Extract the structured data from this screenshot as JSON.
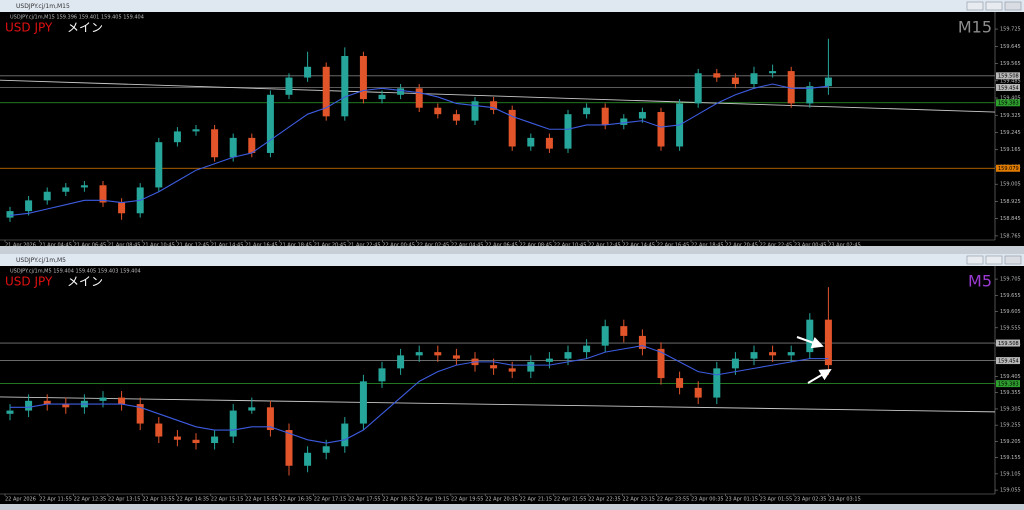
{
  "windows": [
    {
      "title": "USDJPY.cj/1m,M15",
      "info": "USDJPY.cj/1m,M15  159.396 159.401 159.405 159.404",
      "symbol": "USD JPY",
      "label": "メイン",
      "timeframe": "M15",
      "ylim": [
        158.746,
        159.795
      ],
      "yticks": [
        159.725,
        159.645,
        159.565,
        159.485,
        159.405,
        159.325,
        159.245,
        159.165,
        159.085,
        159.005,
        158.925,
        158.845,
        158.765
      ],
      "levels": [
        {
          "value": 159.508,
          "color": "#7a7a7a"
        },
        {
          "value": 159.454,
          "color": "#7a7a7a"
        },
        {
          "value": 159.383,
          "color": "#2e9e2e"
        },
        {
          "value": 159.079,
          "color": "#e07b00"
        }
      ],
      "trendline": [
        159.488,
        159.34
      ],
      "candles": [
        [
          158.85,
          158.9,
          158.83,
          158.88
        ],
        [
          158.88,
          158.95,
          158.86,
          158.93
        ],
        [
          158.93,
          158.99,
          158.91,
          158.97
        ],
        [
          158.97,
          159.01,
          158.95,
          158.99
        ],
        [
          158.99,
          159.02,
          158.97,
          159.0
        ],
        [
          159.0,
          159.02,
          158.9,
          158.92
        ],
        [
          158.92,
          158.94,
          158.84,
          158.87
        ],
        [
          158.87,
          159.01,
          158.85,
          158.99
        ],
        [
          158.99,
          159.22,
          158.97,
          159.2
        ],
        [
          159.2,
          159.27,
          159.18,
          159.25
        ],
        [
          159.25,
          159.28,
          159.23,
          159.26
        ],
        [
          159.26,
          159.28,
          159.11,
          159.13
        ],
        [
          159.13,
          159.24,
          159.11,
          159.22
        ],
        [
          159.22,
          159.24,
          159.13,
          159.15
        ],
        [
          159.15,
          159.44,
          159.13,
          159.42
        ],
        [
          159.42,
          159.52,
          159.4,
          159.5
        ],
        [
          159.5,
          159.62,
          159.48,
          159.55
        ],
        [
          159.55,
          159.57,
          159.3,
          159.32
        ],
        [
          159.32,
          159.64,
          159.3,
          159.6
        ],
        [
          159.6,
          159.62,
          159.38,
          159.4
        ],
        [
          159.4,
          159.44,
          159.38,
          159.42
        ],
        [
          159.42,
          159.47,
          159.4,
          159.45
        ],
        [
          159.45,
          159.47,
          159.34,
          159.36
        ],
        [
          159.36,
          159.38,
          159.31,
          159.33
        ],
        [
          159.33,
          159.35,
          159.28,
          159.3
        ],
        [
          159.3,
          159.41,
          159.28,
          159.39
        ],
        [
          159.39,
          159.41,
          159.33,
          159.35
        ],
        [
          159.35,
          159.37,
          159.16,
          159.18
        ],
        [
          159.18,
          159.24,
          159.16,
          159.22
        ],
        [
          159.22,
          159.24,
          159.15,
          159.17
        ],
        [
          159.17,
          159.35,
          159.15,
          159.33
        ],
        [
          159.33,
          159.38,
          159.31,
          159.36
        ],
        [
          159.36,
          159.38,
          159.26,
          159.28
        ],
        [
          159.28,
          159.33,
          159.26,
          159.31
        ],
        [
          159.31,
          159.36,
          159.29,
          159.34
        ],
        [
          159.34,
          159.36,
          159.16,
          159.18
        ],
        [
          159.18,
          159.4,
          159.16,
          159.38
        ],
        [
          159.38,
          159.54,
          159.36,
          159.52
        ],
        [
          159.52,
          159.54,
          159.48,
          159.5
        ],
        [
          159.5,
          159.52,
          159.45,
          159.47
        ],
        [
          159.47,
          159.55,
          159.45,
          159.52
        ],
        [
          159.52,
          159.56,
          159.5,
          159.53
        ],
        [
          159.53,
          159.55,
          159.36,
          159.38
        ],
        [
          159.38,
          159.48,
          159.36,
          159.46
        ],
        [
          159.46,
          159.68,
          159.42,
          159.5
        ]
      ],
      "ma": [
        158.86,
        158.87,
        158.89,
        158.91,
        158.93,
        158.93,
        158.92,
        158.93,
        158.97,
        159.02,
        159.07,
        159.1,
        159.13,
        159.15,
        159.21,
        159.27,
        159.33,
        159.36,
        159.41,
        159.44,
        159.45,
        159.44,
        159.43,
        159.41,
        159.38,
        159.37,
        159.36,
        159.32,
        159.29,
        159.26,
        159.26,
        159.28,
        159.28,
        159.29,
        159.3,
        159.27,
        159.28,
        159.33,
        159.38,
        159.42,
        159.45,
        159.47,
        159.45,
        159.45,
        159.46
      ],
      "time_labels": [
        "21 Apr 2026",
        "21 Apr 04:45",
        "21 Apr 06:45",
        "21 Apr 08:45",
        "21 Apr 10:45",
        "21 Apr 12:45",
        "21 Apr 14:45",
        "21 Apr 16:45",
        "21 Apr 18:45",
        "21 Apr 20:45",
        "21 Apr 22:45",
        "22 Apr 00:45",
        "22 Apr 02:45",
        "22 Apr 04:45",
        "22 Apr 06:45",
        "22 Apr 08:45",
        "22 Apr 10:45",
        "22 Apr 12:45",
        "22 Apr 14:45",
        "22 Apr 16:45",
        "22 Apr 18:45",
        "22 Apr 20:45",
        "22 Apr 22:45",
        "23 Apr 00:45",
        "23 Apr 02:45"
      ]
    },
    {
      "title": "USDJPY.cj/1m,M5",
      "info": "USDJPY.cj/1m,M5  159.404 159.405 159.403 159.404",
      "symbol": "USD JPY",
      "label": "メイン",
      "timeframe": "M5",
      "ylim": [
        159.043,
        159.733
      ],
      "yticks": [
        159.705,
        159.655,
        159.605,
        159.555,
        159.505,
        159.455,
        159.405,
        159.355,
        159.305,
        159.255,
        159.205,
        159.155,
        159.105,
        159.055
      ],
      "levels": [
        {
          "value": 159.508,
          "color": "#7a7a7a"
        },
        {
          "value": 159.454,
          "color": "#7a7a7a"
        },
        {
          "value": 159.383,
          "color": "#2e9e2e"
        }
      ],
      "trendline": [
        159.342,
        159.296
      ],
      "candles": [
        [
          159.29,
          159.32,
          159.27,
          159.3
        ],
        [
          159.3,
          159.35,
          159.28,
          159.33
        ],
        [
          159.33,
          159.35,
          159.3,
          159.32
        ],
        [
          159.32,
          159.34,
          159.29,
          159.31
        ],
        [
          159.31,
          159.35,
          159.29,
          159.33
        ],
        [
          159.33,
          159.36,
          159.31,
          159.34
        ],
        [
          159.34,
          159.36,
          159.3,
          159.32
        ],
        [
          159.32,
          159.34,
          159.24,
          159.26
        ],
        [
          159.26,
          159.28,
          159.2,
          159.22
        ],
        [
          159.22,
          159.24,
          159.19,
          159.21
        ],
        [
          159.21,
          159.23,
          159.18,
          159.2
        ],
        [
          159.2,
          159.24,
          159.18,
          159.22
        ],
        [
          159.22,
          159.32,
          159.2,
          159.3
        ],
        [
          159.3,
          159.34,
          159.29,
          159.31
        ],
        [
          159.31,
          159.33,
          159.22,
          159.24
        ],
        [
          159.24,
          159.26,
          159.1,
          159.13
        ],
        [
          159.13,
          159.19,
          159.11,
          159.17
        ],
        [
          159.17,
          159.21,
          159.15,
          159.19
        ],
        [
          159.19,
          159.28,
          159.17,
          159.26
        ],
        [
          159.26,
          159.41,
          159.24,
          159.39
        ],
        [
          159.39,
          159.45,
          159.37,
          159.43
        ],
        [
          159.43,
          159.49,
          159.41,
          159.47
        ],
        [
          159.47,
          159.5,
          159.45,
          159.48
        ],
        [
          159.48,
          159.5,
          159.45,
          159.47
        ],
        [
          159.47,
          159.49,
          159.44,
          159.46
        ],
        [
          159.46,
          159.48,
          159.42,
          159.44
        ],
        [
          159.44,
          159.46,
          159.41,
          159.43
        ],
        [
          159.43,
          159.45,
          159.4,
          159.42
        ],
        [
          159.42,
          159.47,
          159.4,
          159.45
        ],
        [
          159.45,
          159.48,
          159.43,
          159.46
        ],
        [
          159.46,
          159.5,
          159.44,
          159.48
        ],
        [
          159.48,
          159.52,
          159.46,
          159.5
        ],
        [
          159.5,
          159.58,
          159.48,
          159.56
        ],
        [
          159.56,
          159.58,
          159.51,
          159.53
        ],
        [
          159.53,
          159.55,
          159.47,
          159.49
        ],
        [
          159.49,
          159.51,
          159.38,
          159.4
        ],
        [
          159.4,
          159.42,
          159.35,
          159.37
        ],
        [
          159.37,
          159.39,
          159.32,
          159.34
        ],
        [
          159.34,
          159.45,
          159.32,
          159.43
        ],
        [
          159.43,
          159.48,
          159.41,
          159.46
        ],
        [
          159.46,
          159.5,
          159.44,
          159.48
        ],
        [
          159.48,
          159.5,
          159.45,
          159.47
        ],
        [
          159.47,
          159.5,
          159.45,
          159.48
        ],
        [
          159.48,
          159.6,
          159.46,
          159.58
        ],
        [
          159.58,
          159.68,
          159.41,
          159.44
        ]
      ],
      "ma": [
        159.31,
        159.31,
        159.32,
        159.32,
        159.32,
        159.32,
        159.32,
        159.31,
        159.29,
        159.27,
        159.25,
        159.24,
        159.24,
        159.25,
        159.25,
        159.23,
        159.21,
        159.2,
        159.21,
        159.24,
        159.29,
        159.34,
        159.39,
        159.42,
        159.44,
        159.45,
        159.45,
        159.44,
        159.44,
        159.44,
        159.45,
        159.46,
        159.48,
        159.49,
        159.5,
        159.48,
        159.45,
        159.42,
        159.41,
        159.42,
        159.43,
        159.44,
        159.45,
        159.46,
        159.46
      ],
      "time_labels": [
        "22 Apr 2026",
        "22 Apr 11:55",
        "22 Apr 12:35",
        "22 Apr 13:15",
        "22 Apr 13:55",
        "22 Apr 14:35",
        "22 Apr 15:15",
        "22 Apr 15:55",
        "22 Apr 16:35",
        "22 Apr 17:15",
        "22 Apr 17:55",
        "22 Apr 18:35",
        "22 Apr 19:15",
        "22 Apr 19:55",
        "22 Apr 20:35",
        "22 Apr 21:15",
        "22 Apr 21:55",
        "22 Apr 22:35",
        "22 Apr 23:15",
        "22 Apr 23:55",
        "23 Apr 00:35",
        "23 Apr 01:15",
        "23 Apr 01:55",
        "23 Apr 02:35",
        "23 Apr 03:15"
      ]
    }
  ]
}
